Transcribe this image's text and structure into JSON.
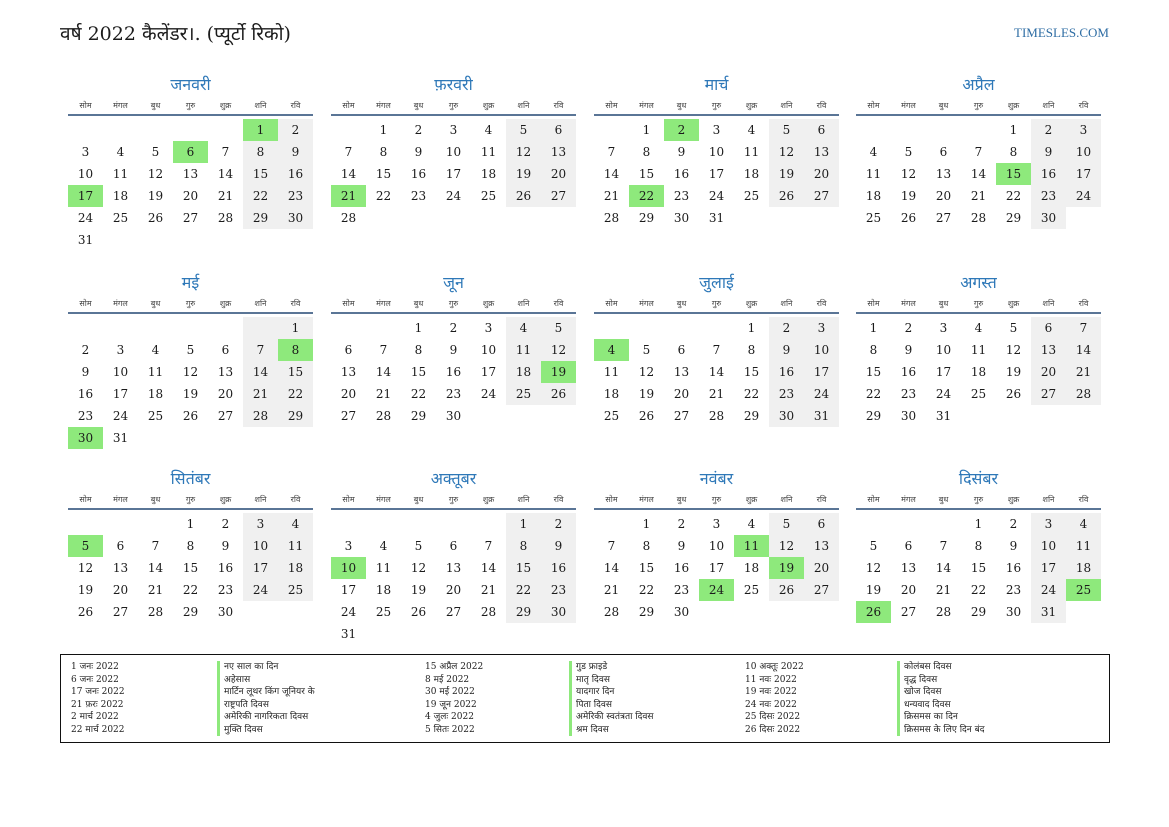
{
  "header": {
    "title": "वर्ष 2022 कैलेंडर।. (प्यूर्टो रिको)",
    "site": "TIMESLES.COM"
  },
  "weekdays": [
    "सोम",
    "मंगल",
    "बुध",
    "गुरु",
    "शुक्र",
    "शनि",
    "रवि"
  ],
  "months": [
    {
      "name": "जनवरी",
      "offset": 5,
      "days": 31,
      "holidays": [
        1,
        6,
        17
      ]
    },
    {
      "name": "फ़रवरी",
      "offset": 1,
      "days": 28,
      "holidays": [
        21
      ]
    },
    {
      "name": "मार्च",
      "offset": 1,
      "days": 31,
      "holidays": [
        2,
        22
      ]
    },
    {
      "name": "अप्रैल",
      "offset": 4,
      "days": 30,
      "holidays": [
        15
      ]
    },
    {
      "name": "मई",
      "offset": 6,
      "days": 31,
      "holidays": [
        8,
        30
      ]
    },
    {
      "name": "जून",
      "offset": 2,
      "days": 30,
      "holidays": [
        19
      ]
    },
    {
      "name": "जुलाई",
      "offset": 4,
      "days": 31,
      "holidays": [
        4
      ]
    },
    {
      "name": "अगस्त",
      "offset": 0,
      "days": 31,
      "holidays": []
    },
    {
      "name": "सितंबर",
      "offset": 3,
      "days": 30,
      "holidays": [
        5
      ]
    },
    {
      "name": "अक्तूबर",
      "offset": 5,
      "days": 31,
      "holidays": [
        10
      ]
    },
    {
      "name": "नवंबर",
      "offset": 1,
      "days": 30,
      "holidays": [
        11,
        19,
        24
      ]
    },
    {
      "name": "दिसंबर",
      "offset": 3,
      "days": 31,
      "holidays": [
        25,
        26
      ]
    }
  ],
  "legend": [
    [
      {
        "date": "1 जनः 2022",
        "name": "नए साल का दिन"
      },
      {
        "date": "6 जनः 2022",
        "name": "अहेसास"
      },
      {
        "date": "17 जनः 2022",
        "name": "मार्टिन लूथर किंग जूनियर के"
      },
      {
        "date": "21 फ़रः 2022",
        "name": "राष्ट्रपति दिवस"
      },
      {
        "date": "2 मार्च 2022",
        "name": "अमेरिकी नागरिकता दिवस"
      },
      {
        "date": "22 मार्च 2022",
        "name": "मुक्ति दिवस"
      }
    ],
    [
      {
        "date": "15 अप्रैल 2022",
        "name": "गुड फ्राइडे"
      },
      {
        "date": "8 मई 2022",
        "name": "मातृ दिवस"
      },
      {
        "date": "30 मई 2022",
        "name": "यादगार दिन"
      },
      {
        "date": "19 जून 2022",
        "name": "पिता दिवस"
      },
      {
        "date": "4 जुलः 2022",
        "name": "अमेरिकी स्वतंत्रता दिवस"
      },
      {
        "date": "5 सितः 2022",
        "name": "श्रम दिवस"
      }
    ],
    [
      {
        "date": "10 अक्तूः 2022",
        "name": "कोलंबस दिवस"
      },
      {
        "date": "11 नवः 2022",
        "name": "वृद्ध दिवस"
      },
      {
        "date": "19 नवः 2022",
        "name": "खोज दिवस"
      },
      {
        "date": "24 नवः 2022",
        "name": "धन्यवाद दिवस"
      },
      {
        "date": "25 दिसः 2022",
        "name": "क्रिसमस का दिन"
      },
      {
        "date": "26 दिसः 2022",
        "name": "क्रिसमस के लिए दिन बंद"
      }
    ]
  ]
}
